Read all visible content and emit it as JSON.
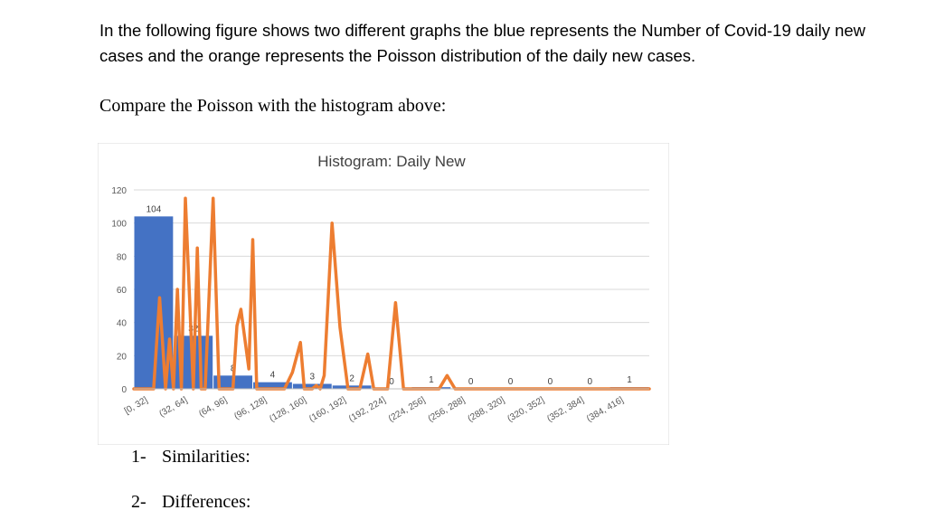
{
  "intro": "In the following figure shows two different graphs the blue represents the Number of Covid-19 daily new cases and the orange represents the Poisson distribution of the daily new cases.",
  "compare": "Compare the Poisson with the histogram above:",
  "questions": [
    {
      "num": "1-",
      "text": "Similarities:"
    },
    {
      "num": "2-",
      "text": "Differences:"
    }
  ],
  "colors": {
    "bar": "#4472C4",
    "line": "#ED7D31",
    "grid": "#D9D9D9",
    "axis_text": "#595959"
  },
  "chart_data": {
    "type": "bar",
    "title": "Histogram: Daily New",
    "categories": [
      "[0, 32]",
      "(32, 64]",
      "(64, 96]",
      "(96, 128]",
      "(128, 160]",
      "(160, 192]",
      "(192, 224]",
      "(224, 256]",
      "(256, 288]",
      "(288, 320]",
      "(320, 352]",
      "(352, 384]",
      "(384, 416]"
    ],
    "values": [
      104,
      32,
      8,
      4,
      3,
      2,
      0,
      1,
      0,
      0,
      0,
      0,
      1
    ],
    "ylim": [
      0,
      120
    ],
    "yticks": [
      0,
      20,
      40,
      60,
      80,
      100,
      120
    ],
    "grid": true,
    "overlay_line": {
      "name": "Poisson",
      "x": [
        0.0,
        0.25,
        0.5,
        0.65,
        0.8,
        0.9,
        1.0,
        1.1,
        1.2,
        1.3,
        1.5,
        1.6,
        1.7,
        1.8,
        2.0,
        2.15,
        2.3,
        2.5,
        2.6,
        2.7,
        2.9,
        3.0,
        3.1,
        3.3,
        3.5,
        3.8,
        4.0,
        4.2,
        4.3,
        4.5,
        4.6,
        4.7,
        4.8,
        5.0,
        5.2,
        5.4,
        5.5,
        5.7,
        5.9,
        6.05,
        6.2,
        6.4,
        6.6,
        6.8,
        7.0,
        7.2,
        7.5,
        7.7,
        7.9,
        8.1,
        8.3,
        8.5,
        8.7,
        8.9,
        9.1,
        9.3,
        9.5,
        9.6,
        9.8,
        10.0,
        10.2,
        10.4,
        10.6,
        10.8,
        11.0,
        13.0
      ],
      "y": [
        0,
        0,
        0,
        55,
        0,
        30,
        0,
        60,
        0,
        115,
        0,
        85,
        0,
        0,
        115,
        0,
        0,
        0,
        38,
        48,
        12,
        90,
        0,
        0,
        0,
        0,
        10,
        28,
        0,
        0,
        2,
        0,
        8,
        100,
        37,
        0,
        0,
        0,
        21,
        0,
        0,
        0,
        52,
        0,
        0,
        0,
        0,
        0,
        8,
        0,
        0,
        0,
        0,
        0,
        0,
        0,
        0,
        0,
        0,
        0,
        0,
        0,
        0,
        0,
        0,
        0
      ]
    }
  }
}
